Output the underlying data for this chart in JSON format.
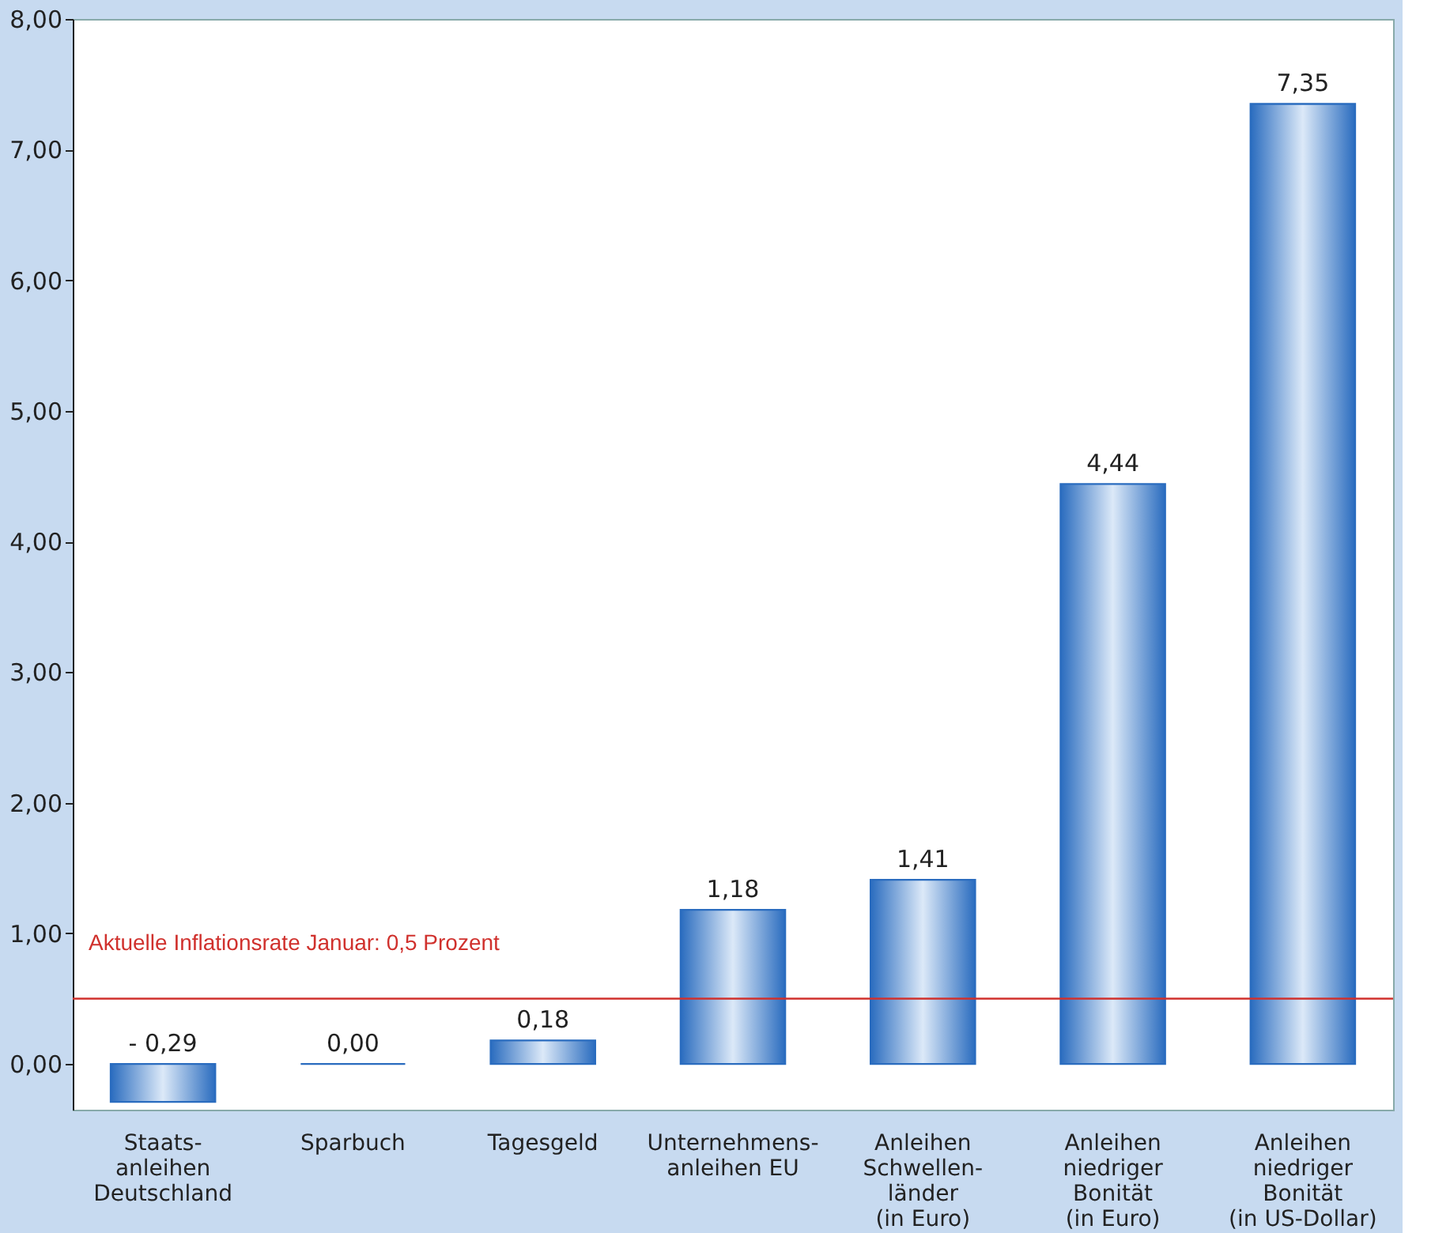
{
  "chart_data": {
    "type": "bar",
    "categories": [
      "Staats-\nanleihen\nDeutschland",
      "Sparbuch",
      "Tagesgeld",
      "Unternehmens-\nanleihen EU",
      "Anleihen\nSchwellen-\nländer\n(in Euro)",
      "Anleihen\nniedriger\nBonität\n(in Euro)",
      "Anleihen\nniedriger\nBonität\n(in US-Dollar)"
    ],
    "values": [
      -0.29,
      0.0,
      0.18,
      1.18,
      1.41,
      4.44,
      7.35
    ],
    "value_labels": [
      "- 0,29",
      "0,00",
      "0,18",
      "1,18",
      "1,41",
      "4,44",
      "7,35"
    ],
    "color": "#2a6cbf",
    "ylim": [
      -0.35,
      8
    ],
    "yticks": [
      {
        "value": 0,
        "label": "0,00"
      },
      {
        "value": 1,
        "label": "1,00"
      },
      {
        "value": 2,
        "label": "2,00"
      },
      {
        "value": 3,
        "label": "3,00"
      },
      {
        "value": 4,
        "label": "4,00"
      },
      {
        "value": 5,
        "label": "5,00"
      },
      {
        "value": 6,
        "label": "6,00"
      },
      {
        "value": 7,
        "label": "7,00"
      },
      {
        "value": 8,
        "label": "8,00"
      }
    ],
    "ref_lines": [
      {
        "axis": "y",
        "value": 0.5,
        "label": "Aktuelle Inflationsrate Januar: 0,5 Prozent",
        "color": "#d0312d"
      }
    ],
    "grid": false
  }
}
